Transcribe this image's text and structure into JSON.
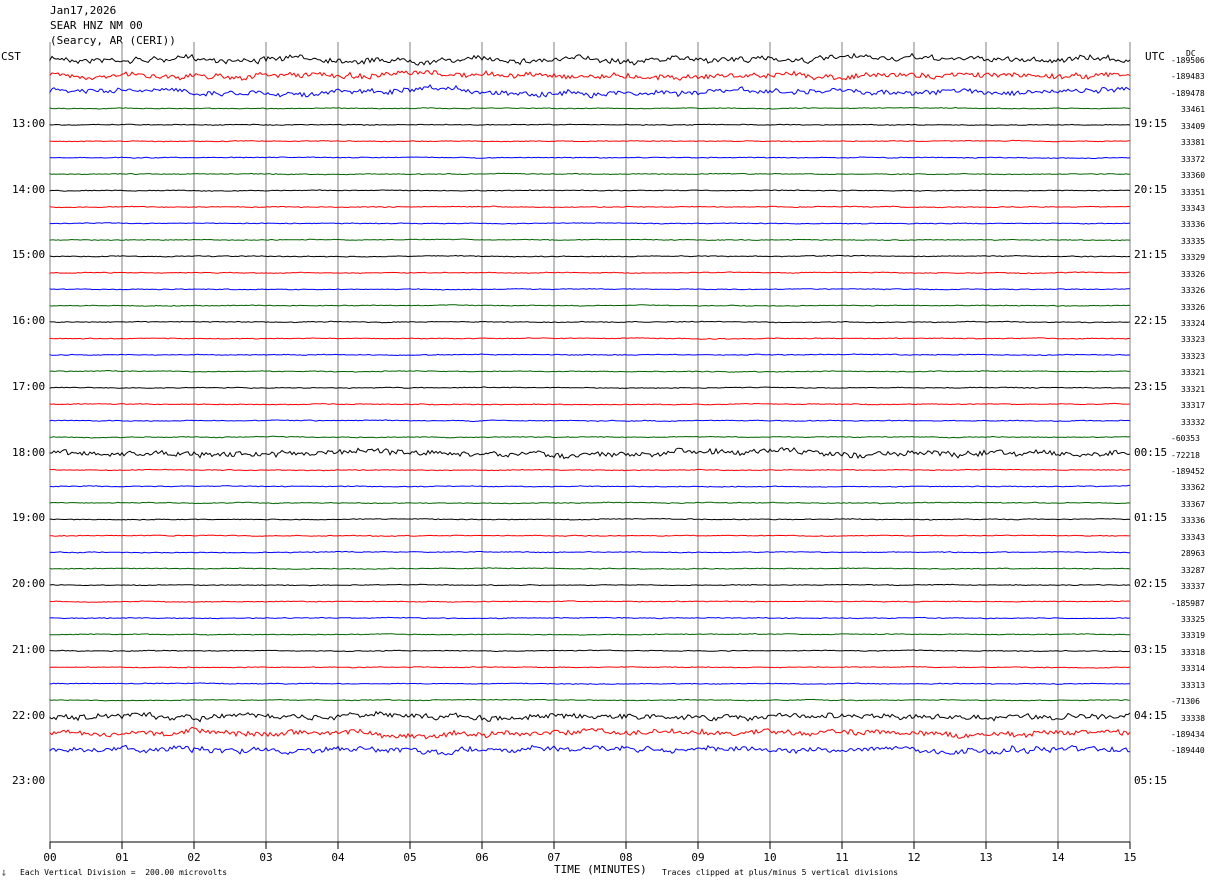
{
  "header": {
    "date": "Jan17,2026",
    "station": "SEAR HNZ NM 00",
    "location": "(Searcy, AR (CERI))"
  },
  "left_axis_title": "CST",
  "right_axis_title": "UTC",
  "right_top_label": "DC",
  "footer": {
    "scale": "Each Vertical Division =  200.00 microvolts",
    "xlabel": "TIME (MINUTES)",
    "clip_note": "Traces clipped at plus/minus 5 vertical divisions"
  },
  "colors": {
    "trace_cycle": [
      "#000000",
      "#ff0000",
      "#0000ff",
      "#006400"
    ],
    "grid": "#808080"
  },
  "chart_data": {
    "type": "line",
    "x_ticks": [
      "00",
      "01",
      "02",
      "03",
      "04",
      "05",
      "06",
      "07",
      "08",
      "09",
      "10",
      "11",
      "12",
      "13",
      "14",
      "15"
    ],
    "xlim": [
      0,
      15
    ],
    "left_hour_labels": [
      "13:00",
      "14:00",
      "15:00",
      "16:00",
      "17:00",
      "18:00",
      "19:00",
      "20:00",
      "21:00",
      "22:00",
      "23:00"
    ],
    "right_hour_labels": [
      "19:15",
      "20:15",
      "21:15",
      "22:15",
      "23:15",
      "00:15",
      "01:15",
      "02:15",
      "03:15",
      "04:15",
      "05:15"
    ],
    "dc_offsets": [
      "-189506",
      "-189483",
      "-189478",
      "33461",
      "33409",
      "33381",
      "33372",
      "33360",
      "33351",
      "33343",
      "33336",
      "33335",
      "33329",
      "33326",
      "33326",
      "33326",
      "33324",
      "33323",
      "33323",
      "33321",
      "33321",
      "33317",
      "33332",
      "-60353",
      "-72218",
      "-189452",
      "33362",
      "33367",
      "33336",
      "33343",
      "28963",
      "33287",
      "33337",
      "-185987",
      "33325",
      "33319",
      "33318",
      "33314",
      "33313",
      "-71306",
      "33338",
      "-189434",
      "-189440"
    ],
    "noisy_traces": [
      0,
      1,
      2,
      24,
      40,
      41,
      42
    ]
  }
}
